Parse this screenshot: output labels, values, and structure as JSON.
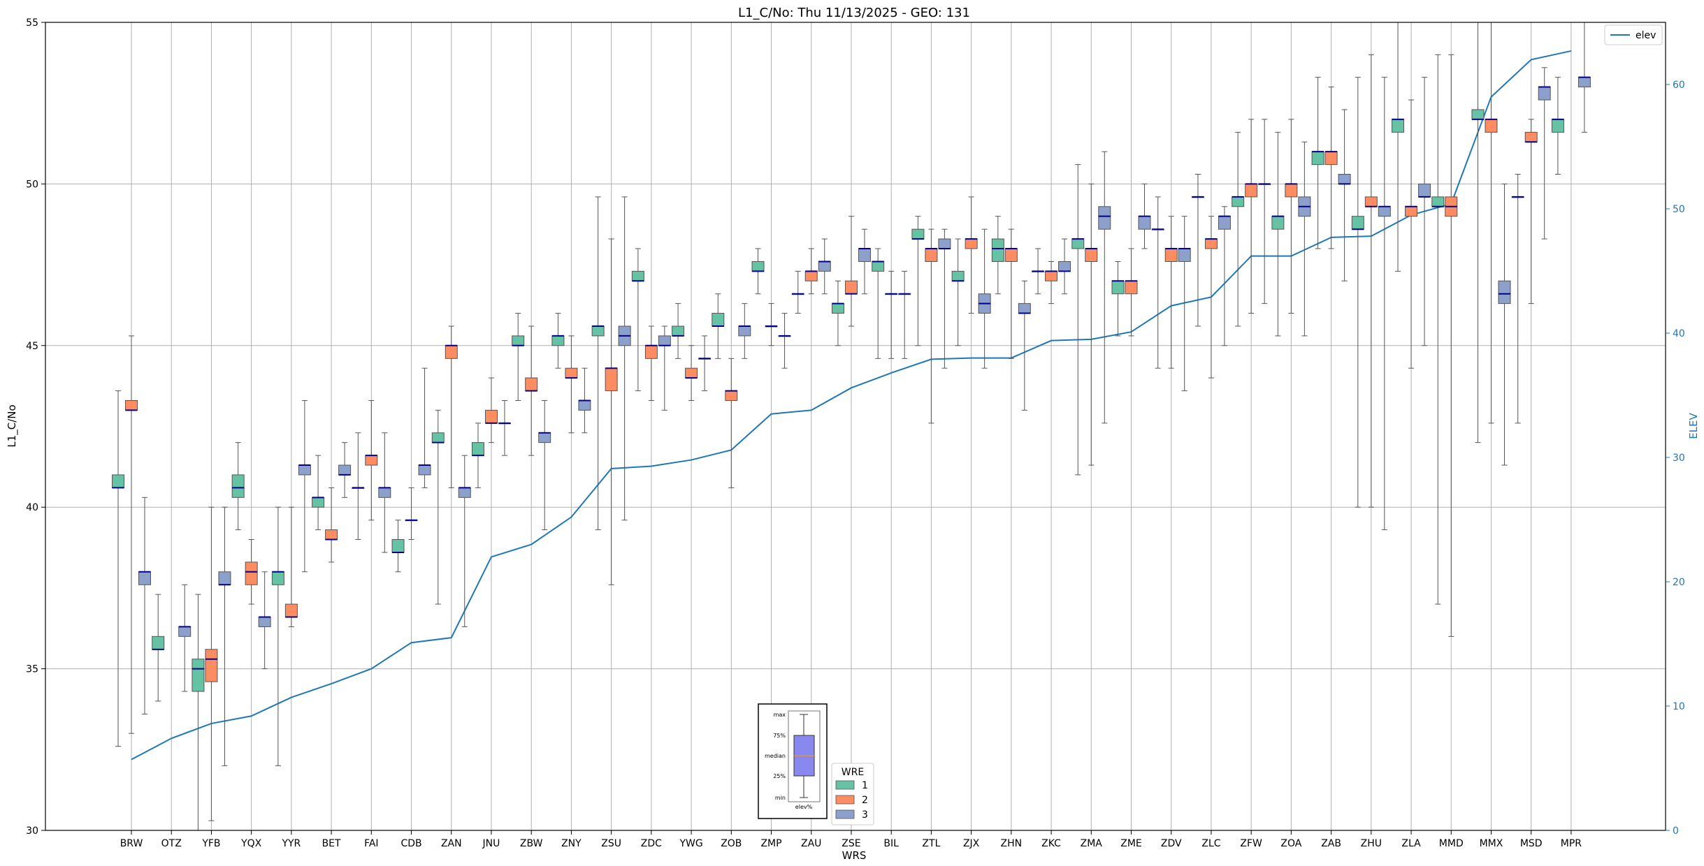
{
  "chart_data": {
    "type": "box",
    "title": "L1_C/No: Thu 11/13/2025 - GEO: 131",
    "xlabel": "WRS",
    "ylabel": "L1_C/No",
    "y2label": "ELEV",
    "ylim": [
      30,
      55
    ],
    "y2lim": [
      0,
      65
    ],
    "yticks": [
      30,
      35,
      40,
      45,
      50,
      55
    ],
    "y2ticks": [
      0,
      10,
      20,
      30,
      40,
      50,
      60
    ],
    "grid": true,
    "categories": [
      "BRW",
      "OTZ",
      "YFB",
      "YQX",
      "YYR",
      "BET",
      "FAI",
      "CDB",
      "ZAN",
      "JNU",
      "ZBW",
      "ZNY",
      "ZSU",
      "ZDC",
      "YWG",
      "ZOB",
      "ZMP",
      "ZAU",
      "ZSE",
      "BIL",
      "ZTL",
      "ZJX",
      "ZHN",
      "ZKC",
      "ZMA",
      "ZME",
      "ZDV",
      "ZLC",
      "ZFW",
      "ZOA",
      "ZAB",
      "ZHU",
      "ZLA",
      "MMD",
      "MMX",
      "MSD",
      "MPR"
    ],
    "wre_colors": {
      "1": "#66c2a5",
      "2": "#fc8d62",
      "3": "#8da0cb"
    },
    "median_color": "#00008b",
    "boxes": [
      {
        "wrs": "BRW",
        "wre": "1",
        "min": 32.6,
        "q1": 40.6,
        "median": 40.6,
        "q3": 41.0,
        "max": 43.6
      },
      {
        "wrs": "BRW",
        "wre": "2",
        "min": 33.0,
        "q1": 43.0,
        "median": 43.0,
        "q3": 43.3,
        "max": 45.3
      },
      {
        "wrs": "BRW",
        "wre": "3",
        "min": 33.6,
        "q1": 37.6,
        "median": 38.0,
        "q3": 38.0,
        "max": 40.3
      },
      {
        "wrs": "OTZ",
        "wre": "1",
        "min": 34.0,
        "q1": 35.6,
        "median": 35.6,
        "q3": 36.0,
        "max": 37.3
      },
      {
        "wrs": "OTZ",
        "wre": "3",
        "min": 34.3,
        "q1": 36.0,
        "median": 36.3,
        "q3": 36.3,
        "max": 37.6
      },
      {
        "wrs": "YFB",
        "wre": "1",
        "min": 30.0,
        "q1": 34.3,
        "median": 35.0,
        "q3": 35.3,
        "max": 37.3
      },
      {
        "wrs": "YFB",
        "wre": "2",
        "min": 30.3,
        "q1": 34.6,
        "median": 35.3,
        "q3": 35.6,
        "max": 40.0
      },
      {
        "wrs": "YFB",
        "wre": "3",
        "min": 32.0,
        "q1": 37.6,
        "median": 37.6,
        "q3": 38.0,
        "max": 40.0
      },
      {
        "wrs": "YQX",
        "wre": "1",
        "min": 39.3,
        "q1": 40.3,
        "median": 40.6,
        "q3": 41.0,
        "max": 42.0
      },
      {
        "wrs": "YQX",
        "wre": "2",
        "min": 37.0,
        "q1": 37.6,
        "median": 38.0,
        "q3": 38.3,
        "max": 39.0
      },
      {
        "wrs": "YQX",
        "wre": "3",
        "min": 35.0,
        "q1": 36.3,
        "median": 36.6,
        "q3": 36.6,
        "max": 38.0
      },
      {
        "wrs": "YYR",
        "wre": "1",
        "min": 32.0,
        "q1": 37.6,
        "median": 38.0,
        "q3": 38.0,
        "max": 40.0
      },
      {
        "wrs": "YYR",
        "wre": "2",
        "min": 36.3,
        "q1": 36.6,
        "median": 36.6,
        "q3": 37.0,
        "max": 40.0
      },
      {
        "wrs": "YYR",
        "wre": "3",
        "min": 38.0,
        "q1": 41.0,
        "median": 41.3,
        "q3": 41.3,
        "max": 43.3
      },
      {
        "wrs": "BET",
        "wre": "1",
        "min": 39.3,
        "q1": 40.0,
        "median": 40.3,
        "q3": 40.3,
        "max": 41.6
      },
      {
        "wrs": "BET",
        "wre": "2",
        "min": 38.3,
        "q1": 39.0,
        "median": 39.0,
        "q3": 39.3,
        "max": 40.6
      },
      {
        "wrs": "BET",
        "wre": "3",
        "min": 40.3,
        "q1": 41.0,
        "median": 41.0,
        "q3": 41.3,
        "max": 42.0
      },
      {
        "wrs": "FAI",
        "wre": "1",
        "min": 39.0,
        "q1": 40.6,
        "median": 40.6,
        "q3": 40.6,
        "max": 42.3
      },
      {
        "wrs": "FAI",
        "wre": "2",
        "min": 39.6,
        "q1": 41.3,
        "median": 41.6,
        "q3": 41.6,
        "max": 43.3
      },
      {
        "wrs": "FAI",
        "wre": "3",
        "min": 38.6,
        "q1": 40.3,
        "median": 40.6,
        "q3": 40.6,
        "max": 42.3
      },
      {
        "wrs": "CDB",
        "wre": "1",
        "min": 38.0,
        "q1": 38.6,
        "median": 38.6,
        "q3": 39.0,
        "max": 39.6
      },
      {
        "wrs": "CDB",
        "wre": "2",
        "min": 39.0,
        "q1": 39.6,
        "median": 39.6,
        "q3": 39.6,
        "max": 40.6
      },
      {
        "wrs": "CDB",
        "wre": "3",
        "min": 40.6,
        "q1": 41.0,
        "median": 41.3,
        "q3": 41.3,
        "max": 44.3
      },
      {
        "wrs": "ZAN",
        "wre": "1",
        "min": 37.0,
        "q1": 42.0,
        "median": 42.0,
        "q3": 42.3,
        "max": 43.0
      },
      {
        "wrs": "ZAN",
        "wre": "2",
        "min": 40.6,
        "q1": 44.6,
        "median": 45.0,
        "q3": 45.0,
        "max": 45.6
      },
      {
        "wrs": "ZAN",
        "wre": "3",
        "min": 36.3,
        "q1": 40.3,
        "median": 40.6,
        "q3": 40.6,
        "max": 41.6
      },
      {
        "wrs": "JNU",
        "wre": "1",
        "min": 40.6,
        "q1": 41.6,
        "median": 41.6,
        "q3": 42.0,
        "max": 42.6
      },
      {
        "wrs": "JNU",
        "wre": "2",
        "min": 42.0,
        "q1": 42.6,
        "median": 42.6,
        "q3": 43.0,
        "max": 44.0
      },
      {
        "wrs": "JNU",
        "wre": "3",
        "min": 41.6,
        "q1": 42.6,
        "median": 42.6,
        "q3": 42.6,
        "max": 43.3
      },
      {
        "wrs": "ZBW",
        "wre": "1",
        "min": 43.3,
        "q1": 45.0,
        "median": 45.0,
        "q3": 45.3,
        "max": 46.0
      },
      {
        "wrs": "ZBW",
        "wre": "2",
        "min": 41.6,
        "q1": 43.6,
        "median": 43.6,
        "q3": 44.0,
        "max": 45.6
      },
      {
        "wrs": "ZBW",
        "wre": "3",
        "min": 39.3,
        "q1": 42.0,
        "median": 42.3,
        "q3": 42.3,
        "max": 43.3
      },
      {
        "wrs": "ZNY",
        "wre": "1",
        "min": 44.3,
        "q1": 45.0,
        "median": 45.3,
        "q3": 45.3,
        "max": 46.0
      },
      {
        "wrs": "ZNY",
        "wre": "2",
        "min": 42.3,
        "q1": 44.0,
        "median": 44.0,
        "q3": 44.3,
        "max": 45.3
      },
      {
        "wrs": "ZNY",
        "wre": "3",
        "min": 42.3,
        "q1": 43.0,
        "median": 43.3,
        "q3": 43.3,
        "max": 44.3
      },
      {
        "wrs": "ZSU",
        "wre": "1",
        "min": 39.3,
        "q1": 45.3,
        "median": 45.6,
        "q3": 45.6,
        "max": 49.6
      },
      {
        "wrs": "ZSU",
        "wre": "2",
        "min": 37.6,
        "q1": 43.6,
        "median": 44.3,
        "q3": 44.3,
        "max": 48.3
      },
      {
        "wrs": "ZSU",
        "wre": "3",
        "min": 39.6,
        "q1": 45.0,
        "median": 45.3,
        "q3": 45.6,
        "max": 49.6
      },
      {
        "wrs": "ZDC",
        "wre": "1",
        "min": 43.6,
        "q1": 47.0,
        "median": 47.0,
        "q3": 47.3,
        "max": 48.0
      },
      {
        "wrs": "ZDC",
        "wre": "2",
        "min": 43.3,
        "q1": 44.6,
        "median": 45.0,
        "q3": 45.0,
        "max": 45.6
      },
      {
        "wrs": "ZDC",
        "wre": "3",
        "min": 43.0,
        "q1": 45.0,
        "median": 45.0,
        "q3": 45.3,
        "max": 45.6
      },
      {
        "wrs": "YWG",
        "wre": "1",
        "min": 44.6,
        "q1": 45.3,
        "median": 45.3,
        "q3": 45.6,
        "max": 46.3
      },
      {
        "wrs": "YWG",
        "wre": "2",
        "min": 43.3,
        "q1": 44.0,
        "median": 44.0,
        "q3": 44.3,
        "max": 45.0
      },
      {
        "wrs": "YWG",
        "wre": "3",
        "min": 43.6,
        "q1": 44.6,
        "median": 44.6,
        "q3": 44.6,
        "max": 45.3
      },
      {
        "wrs": "ZOB",
        "wre": "1",
        "min": 44.6,
        "q1": 45.6,
        "median": 45.6,
        "q3": 46.0,
        "max": 46.6
      },
      {
        "wrs": "ZOB",
        "wre": "2",
        "min": 40.6,
        "q1": 43.3,
        "median": 43.6,
        "q3": 43.6,
        "max": 44.6
      },
      {
        "wrs": "ZOB",
        "wre": "3",
        "min": 44.6,
        "q1": 45.3,
        "median": 45.6,
        "q3": 45.6,
        "max": 46.3
      },
      {
        "wrs": "ZMP",
        "wre": "1",
        "min": 46.6,
        "q1": 47.3,
        "median": 47.3,
        "q3": 47.6,
        "max": 48.0
      },
      {
        "wrs": "ZMP",
        "wre": "2",
        "min": 45.0,
        "q1": 45.6,
        "median": 45.6,
        "q3": 45.6,
        "max": 46.3
      },
      {
        "wrs": "ZMP",
        "wre": "3",
        "min": 44.3,
        "q1": 45.3,
        "median": 45.3,
        "q3": 45.3,
        "max": 46.0
      },
      {
        "wrs": "ZAU",
        "wre": "1",
        "min": 46.0,
        "q1": 46.6,
        "median": 46.6,
        "q3": 46.6,
        "max": 47.3
      },
      {
        "wrs": "ZAU",
        "wre": "2",
        "min": 46.6,
        "q1": 47.0,
        "median": 47.3,
        "q3": 47.3,
        "max": 48.0
      },
      {
        "wrs": "ZAU",
        "wre": "3",
        "min": 46.6,
        "q1": 47.3,
        "median": 47.6,
        "q3": 47.6,
        "max": 48.3
      },
      {
        "wrs": "ZSE",
        "wre": "1",
        "min": 45.0,
        "q1": 46.0,
        "median": 46.3,
        "q3": 46.3,
        "max": 47.0
      },
      {
        "wrs": "ZSE",
        "wre": "2",
        "min": 45.6,
        "q1": 46.6,
        "median": 46.6,
        "q3": 47.0,
        "max": 49.0
      },
      {
        "wrs": "ZSE",
        "wre": "3",
        "min": 46.6,
        "q1": 47.6,
        "median": 48.0,
        "q3": 48.0,
        "max": 48.6
      },
      {
        "wrs": "BIL",
        "wre": "1",
        "min": 44.6,
        "q1": 47.3,
        "median": 47.6,
        "q3": 47.6,
        "max": 48.0
      },
      {
        "wrs": "BIL",
        "wre": "2",
        "min": 44.6,
        "q1": 46.6,
        "median": 46.6,
        "q3": 46.6,
        "max": 47.3
      },
      {
        "wrs": "BIL",
        "wre": "3",
        "min": 44.6,
        "q1": 46.6,
        "median": 46.6,
        "q3": 46.6,
        "max": 47.3
      },
      {
        "wrs": "ZTL",
        "wre": "1",
        "min": 45.0,
        "q1": 48.3,
        "median": 48.3,
        "q3": 48.6,
        "max": 49.0
      },
      {
        "wrs": "ZTL",
        "wre": "2",
        "min": 42.6,
        "q1": 47.6,
        "median": 48.0,
        "q3": 48.0,
        "max": 48.6
      },
      {
        "wrs": "ZTL",
        "wre": "3",
        "min": 44.3,
        "q1": 48.0,
        "median": 48.0,
        "q3": 48.3,
        "max": 48.6
      },
      {
        "wrs": "ZJX",
        "wre": "1",
        "min": 45.0,
        "q1": 47.0,
        "median": 47.0,
        "q3": 47.3,
        "max": 48.3
      },
      {
        "wrs": "ZJX",
        "wre": "2",
        "min": 46.0,
        "q1": 48.0,
        "median": 48.3,
        "q3": 48.3,
        "max": 49.6
      },
      {
        "wrs": "ZJX",
        "wre": "3",
        "min": 44.3,
        "q1": 46.0,
        "median": 46.3,
        "q3": 46.6,
        "max": 48.6
      },
      {
        "wrs": "ZHN",
        "wre": "1",
        "min": 46.6,
        "q1": 47.6,
        "median": 48.0,
        "q3": 48.3,
        "max": 49.0
      },
      {
        "wrs": "ZHN",
        "wre": "2",
        "min": 44.6,
        "q1": 47.6,
        "median": 48.0,
        "q3": 48.0,
        "max": 48.6
      },
      {
        "wrs": "ZHN",
        "wre": "3",
        "min": 43.0,
        "q1": 46.0,
        "median": 46.0,
        "q3": 46.3,
        "max": 47.0
      },
      {
        "wrs": "ZKC",
        "wre": "1",
        "min": 46.6,
        "q1": 47.3,
        "median": 47.3,
        "q3": 47.3,
        "max": 48.0
      },
      {
        "wrs": "ZKC",
        "wre": "2",
        "min": 46.3,
        "q1": 47.0,
        "median": 47.3,
        "q3": 47.3,
        "max": 47.6
      },
      {
        "wrs": "ZKC",
        "wre": "3",
        "min": 46.6,
        "q1": 47.3,
        "median": 47.3,
        "q3": 47.6,
        "max": 48.3
      },
      {
        "wrs": "ZMA",
        "wre": "1",
        "min": 41.0,
        "q1": 48.0,
        "median": 48.3,
        "q3": 48.3,
        "max": 50.6
      },
      {
        "wrs": "ZMA",
        "wre": "2",
        "min": 41.3,
        "q1": 47.6,
        "median": 48.0,
        "q3": 48.0,
        "max": 50.0
      },
      {
        "wrs": "ZMA",
        "wre": "3",
        "min": 42.6,
        "q1": 48.6,
        "median": 49.0,
        "q3": 49.3,
        "max": 51.0
      },
      {
        "wrs": "ZME",
        "wre": "1",
        "min": 45.3,
        "q1": 46.6,
        "median": 47.0,
        "q3": 47.0,
        "max": 47.6
      },
      {
        "wrs": "ZME",
        "wre": "2",
        "min": 45.3,
        "q1": 46.6,
        "median": 47.0,
        "q3": 47.0,
        "max": 48.0
      },
      {
        "wrs": "ZME",
        "wre": "3",
        "min": 48.0,
        "q1": 48.6,
        "median": 49.0,
        "q3": 49.0,
        "max": 50.0
      },
      {
        "wrs": "ZDV",
        "wre": "1",
        "min": 44.3,
        "q1": 48.6,
        "median": 48.6,
        "q3": 48.6,
        "max": 49.6
      },
      {
        "wrs": "ZDV",
        "wre": "2",
        "min": 44.3,
        "q1": 47.6,
        "median": 48.0,
        "q3": 48.0,
        "max": 49.0
      },
      {
        "wrs": "ZDV",
        "wre": "3",
        "min": 43.6,
        "q1": 47.6,
        "median": 48.0,
        "q3": 48.0,
        "max": 49.0
      },
      {
        "wrs": "ZLC",
        "wre": "1",
        "min": 45.6,
        "q1": 49.6,
        "median": 49.6,
        "q3": 49.6,
        "max": 50.3
      },
      {
        "wrs": "ZLC",
        "wre": "2",
        "min": 44.0,
        "q1": 48.0,
        "median": 48.3,
        "q3": 48.3,
        "max": 49.0
      },
      {
        "wrs": "ZLC",
        "wre": "3",
        "min": 45.0,
        "q1": 48.6,
        "median": 49.0,
        "q3": 49.0,
        "max": 49.3
      },
      {
        "wrs": "ZFW",
        "wre": "1",
        "min": 45.6,
        "q1": 49.3,
        "median": 49.6,
        "q3": 49.6,
        "max": 51.6
      },
      {
        "wrs": "ZFW",
        "wre": "2",
        "min": 46.0,
        "q1": 49.6,
        "median": 50.0,
        "q3": 50.0,
        "max": 52.0
      },
      {
        "wrs": "ZFW",
        "wre": "3",
        "min": 46.3,
        "q1": 50.0,
        "median": 50.0,
        "q3": 50.0,
        "max": 52.0
      },
      {
        "wrs": "ZOA",
        "wre": "1",
        "min": 45.3,
        "q1": 48.6,
        "median": 49.0,
        "q3": 49.0,
        "max": 51.6
      },
      {
        "wrs": "ZOA",
        "wre": "2",
        "min": 46.0,
        "q1": 49.6,
        "median": 50.0,
        "q3": 50.0,
        "max": 52.0
      },
      {
        "wrs": "ZOA",
        "wre": "3",
        "min": 45.3,
        "q1": 49.0,
        "median": 49.3,
        "q3": 49.6,
        "max": 51.3
      },
      {
        "wrs": "ZAB",
        "wre": "1",
        "min": 48.0,
        "q1": 50.6,
        "median": 51.0,
        "q3": 51.0,
        "max": 53.3
      },
      {
        "wrs": "ZAB",
        "wre": "2",
        "min": 48.0,
        "q1": 50.6,
        "median": 51.0,
        "q3": 51.0,
        "max": 53.0
      },
      {
        "wrs": "ZAB",
        "wre": "3",
        "min": 47.0,
        "q1": 50.0,
        "median": 50.0,
        "q3": 50.3,
        "max": 52.3
      },
      {
        "wrs": "ZHU",
        "wre": "1",
        "min": 40.0,
        "q1": 48.6,
        "median": 48.6,
        "q3": 49.0,
        "max": 53.3
      },
      {
        "wrs": "ZHU",
        "wre": "2",
        "min": 40.0,
        "q1": 49.3,
        "median": 49.3,
        "q3": 49.6,
        "max": 54.0
      },
      {
        "wrs": "ZHU",
        "wre": "3",
        "min": 39.3,
        "q1": 49.0,
        "median": 49.3,
        "q3": 49.3,
        "max": 53.3
      },
      {
        "wrs": "ZLA",
        "wre": "1",
        "min": 47.3,
        "q1": 51.6,
        "median": 52.0,
        "q3": 52.0,
        "max": 55.0
      },
      {
        "wrs": "ZLA",
        "wre": "2",
        "min": 44.3,
        "q1": 49.0,
        "median": 49.3,
        "q3": 49.3,
        "max": 52.6
      },
      {
        "wrs": "ZLA",
        "wre": "3",
        "min": 45.0,
        "q1": 49.6,
        "median": 49.6,
        "q3": 50.0,
        "max": 53.3
      },
      {
        "wrs": "MMD",
        "wre": "1",
        "min": 37.0,
        "q1": 49.3,
        "median": 49.3,
        "q3": 49.6,
        "max": 54.0
      },
      {
        "wrs": "MMD",
        "wre": "2",
        "min": 36.0,
        "q1": 49.0,
        "median": 49.3,
        "q3": 49.6,
        "max": 54.0
      },
      {
        "wrs": "MMX",
        "wre": "1",
        "min": 42.0,
        "q1": 52.0,
        "median": 52.0,
        "q3": 52.3,
        "max": 55.0
      },
      {
        "wrs": "MMX",
        "wre": "2",
        "min": 42.6,
        "q1": 51.6,
        "median": 52.0,
        "q3": 52.0,
        "max": 55.0
      },
      {
        "wrs": "MMX",
        "wre": "3",
        "min": 41.3,
        "q1": 46.3,
        "median": 46.6,
        "q3": 47.0,
        "max": 50.0
      },
      {
        "wrs": "MSD",
        "wre": "1",
        "min": 42.6,
        "q1": 49.6,
        "median": 49.6,
        "q3": 49.6,
        "max": 50.3
      },
      {
        "wrs": "MSD",
        "wre": "2",
        "min": 46.3,
        "q1": 51.3,
        "median": 51.3,
        "q3": 51.6,
        "max": 52.0
      },
      {
        "wrs": "MSD",
        "wre": "3",
        "min": 48.3,
        "q1": 52.6,
        "median": 53.0,
        "q3": 53.0,
        "max": 53.6
      },
      {
        "wrs": "MPR",
        "wre": "1",
        "min": 50.3,
        "q1": 51.6,
        "median": 52.0,
        "q3": 52.0,
        "max": 53.3
      },
      {
        "wrs": "MPR",
        "wre": "3",
        "min": 51.6,
        "q1": 53.0,
        "median": 53.3,
        "q3": 53.3,
        "max": 55.0
      }
    ],
    "elev_series": {
      "name": "elev",
      "color": "#1f77b4",
      "values": [
        5.7,
        7.4,
        8.6,
        9.2,
        10.7,
        11.8,
        13.0,
        15.1,
        15.5,
        22.0,
        23.0,
        25.2,
        29.1,
        29.3,
        29.8,
        30.6,
        33.5,
        33.8,
        35.6,
        36.8,
        37.9,
        38.0,
        38.0,
        39.4,
        39.5,
        40.1,
        42.2,
        42.9,
        46.2,
        46.2,
        47.7,
        47.8,
        49.5,
        50.4,
        59.0,
        62.0,
        62.7
      ]
    },
    "legend_wre": {
      "title": "WRE",
      "labels": [
        "1",
        "2",
        "3"
      ]
    },
    "legend_elev": {
      "label": "elev",
      "placement": "top-right"
    },
    "key_labels": {
      "max": "max",
      "q3": "75%",
      "median": "median",
      "q1": "25%",
      "min": "min",
      "caption": "elev%"
    }
  }
}
